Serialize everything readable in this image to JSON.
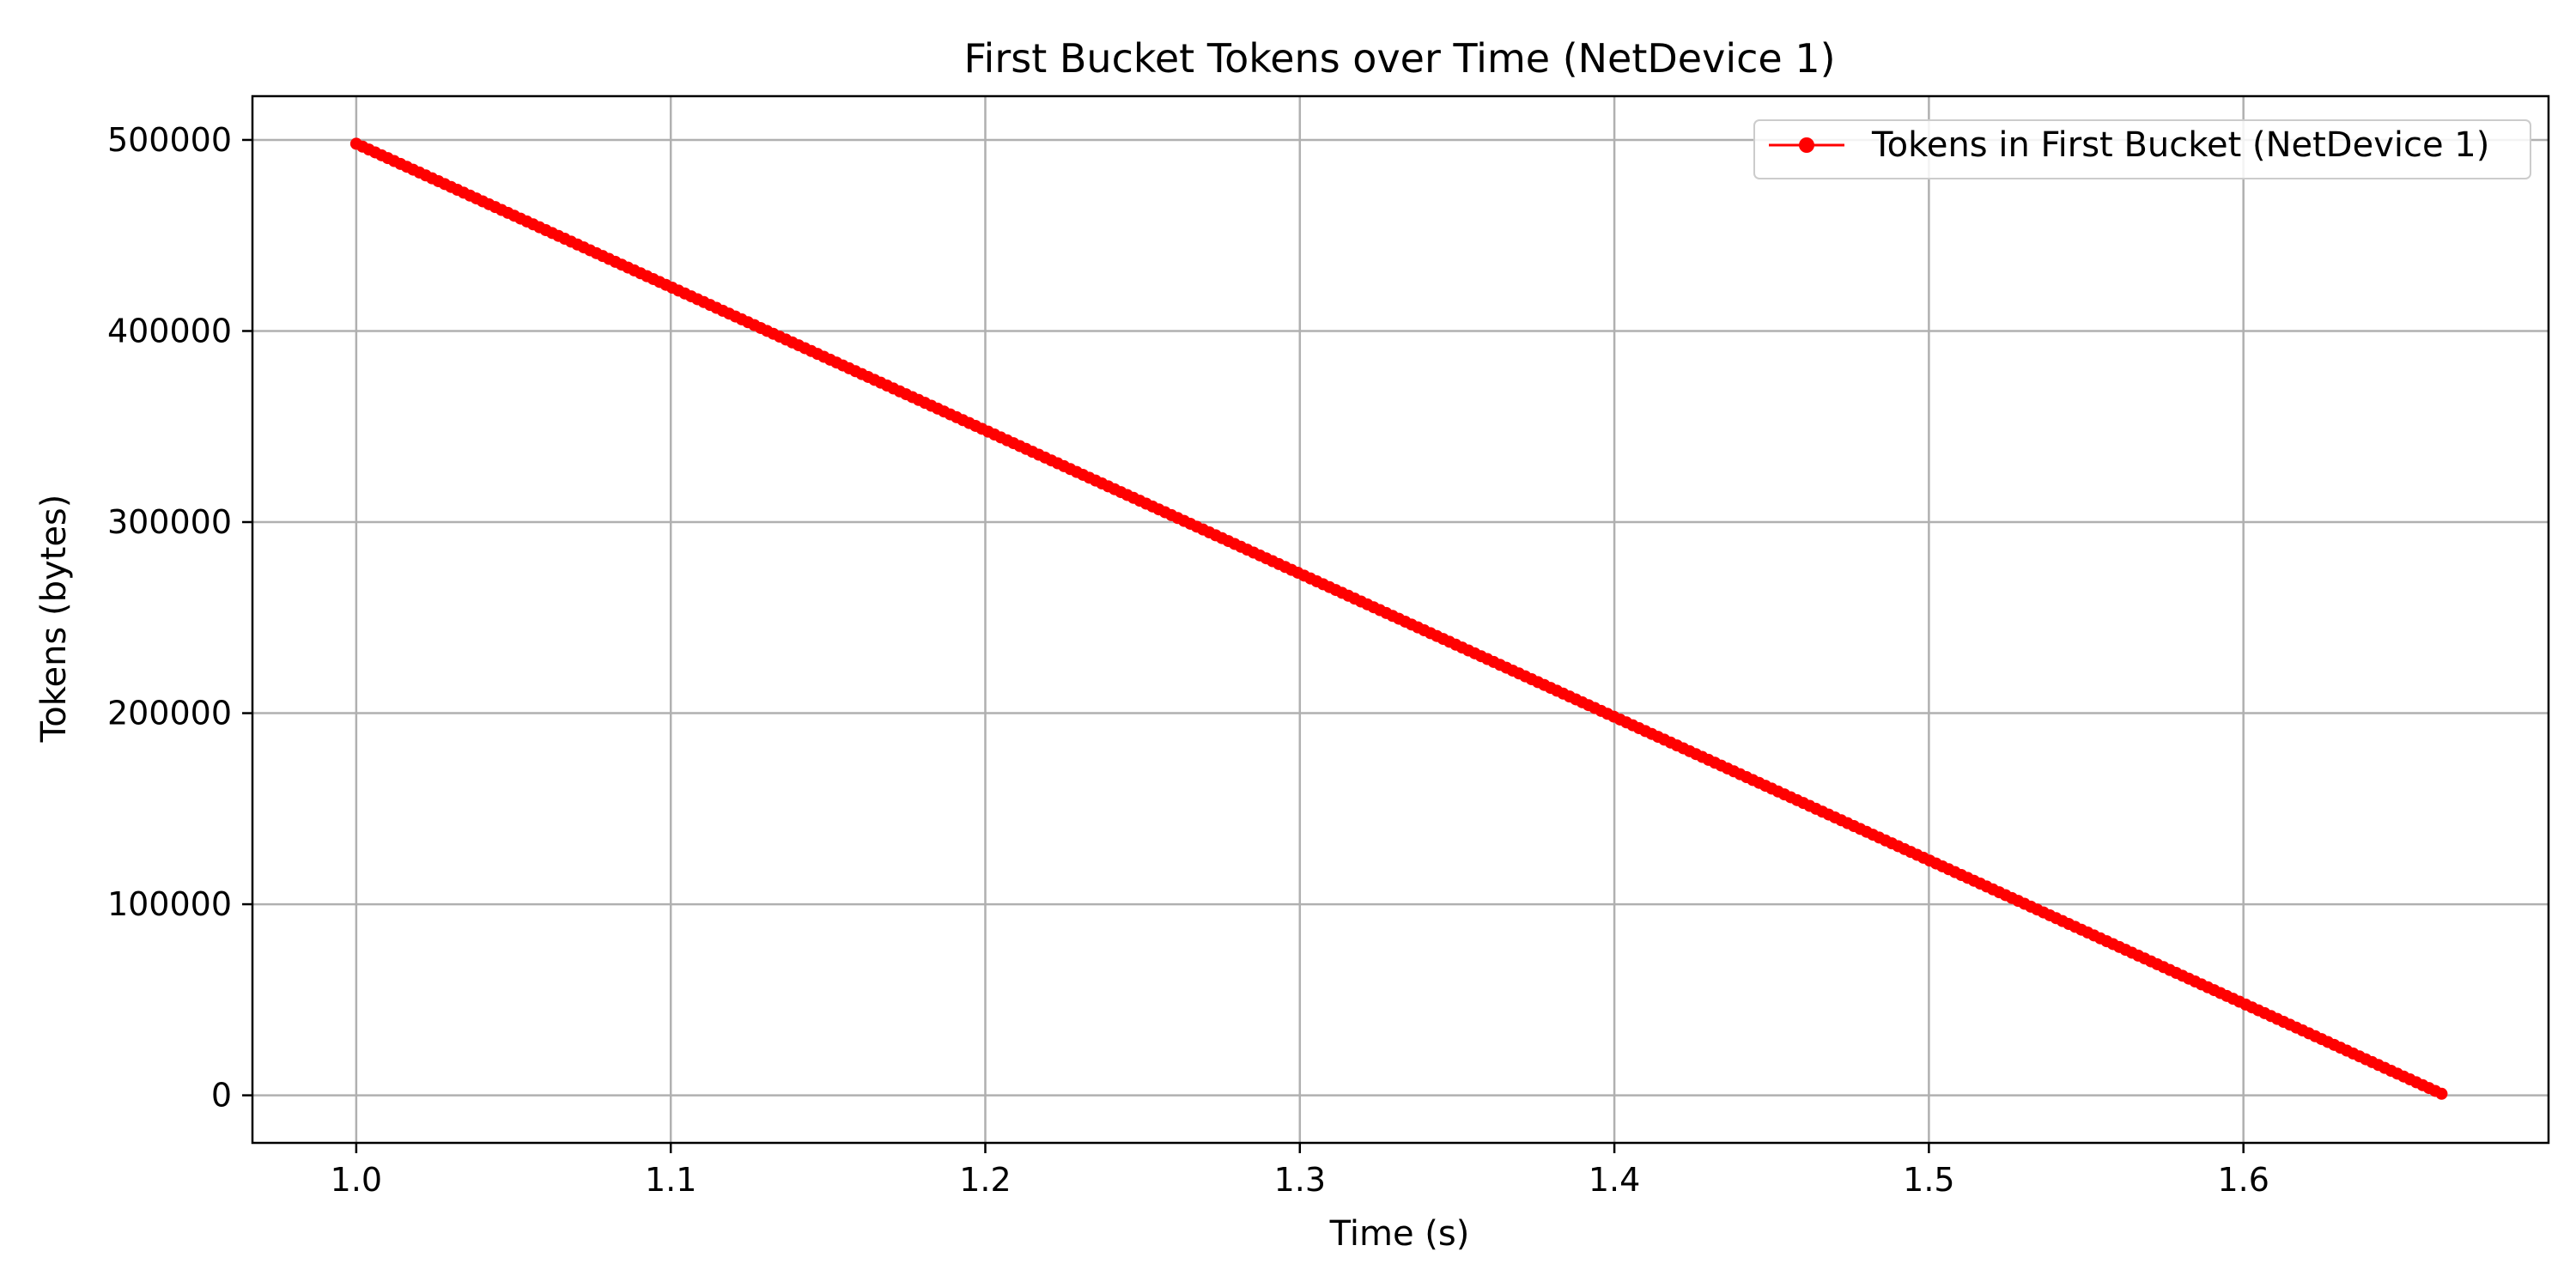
{
  "chart_data": {
    "type": "line",
    "title": "First Bucket Tokens over Time (NetDevice 1)",
    "xlabel": "Time (s)",
    "ylabel": "Tokens (bytes)",
    "xlim": [
      0.967,
      1.697
    ],
    "ylim": [
      -24900,
      522900
    ],
    "xticks": [
      1.0,
      1.1,
      1.2,
      1.3,
      1.4,
      1.5,
      1.6
    ],
    "xtick_labels": [
      "1.0",
      "1.1",
      "1.2",
      "1.3",
      "1.4",
      "1.5",
      "1.6"
    ],
    "yticks": [
      0,
      100000,
      200000,
      300000,
      400000,
      500000
    ],
    "ytick_labels": [
      "0",
      "100000",
      "200000",
      "300000",
      "400000",
      "500000"
    ],
    "grid": true,
    "legend_position": "upper right",
    "series": [
      {
        "name": "Tokens in First Bucket (NetDevice 1)",
        "color": "#ff0000",
        "marker": "circle",
        "x": [
          1.0,
          1.05,
          1.1,
          1.15,
          1.2,
          1.25,
          1.3,
          1.35,
          1.4,
          1.45,
          1.5,
          1.55,
          1.6,
          1.663
        ],
        "y": [
          498000,
          460000,
          423000,
          385000,
          348000,
          310000,
          273000,
          235000,
          198000,
          160000,
          123000,
          85000,
          48000,
          800
        ]
      }
    ]
  }
}
